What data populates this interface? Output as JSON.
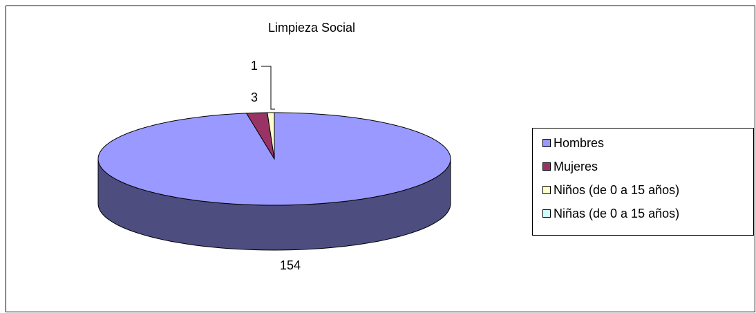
{
  "chart_data": {
    "type": "pie",
    "title": "Limpieza Social",
    "categories": [
      "Hombres",
      "Mujeres",
      "Niños (de 0 a 15 años)",
      "Niñas (de 0 a 15 años)"
    ],
    "values": [
      154,
      3,
      1,
      0
    ],
    "colors": [
      "#9999ff",
      "#993366",
      "#ffffcc",
      "#ccffff"
    ],
    "side_colors": [
      "#4d4d80",
      "#4d1a33",
      "#808066",
      "#668080"
    ],
    "legend": "right",
    "three_d": true
  }
}
